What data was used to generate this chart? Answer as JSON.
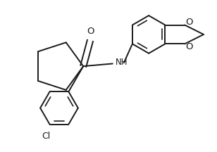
{
  "bg_color": "#ffffff",
  "line_color": "#1a1a1a",
  "line_width": 1.4,
  "figsize": [
    3.08,
    2.16
  ],
  "dpi": 100,
  "xlim": [
    0,
    3.08
  ],
  "ylim": [
    0,
    2.16
  ]
}
